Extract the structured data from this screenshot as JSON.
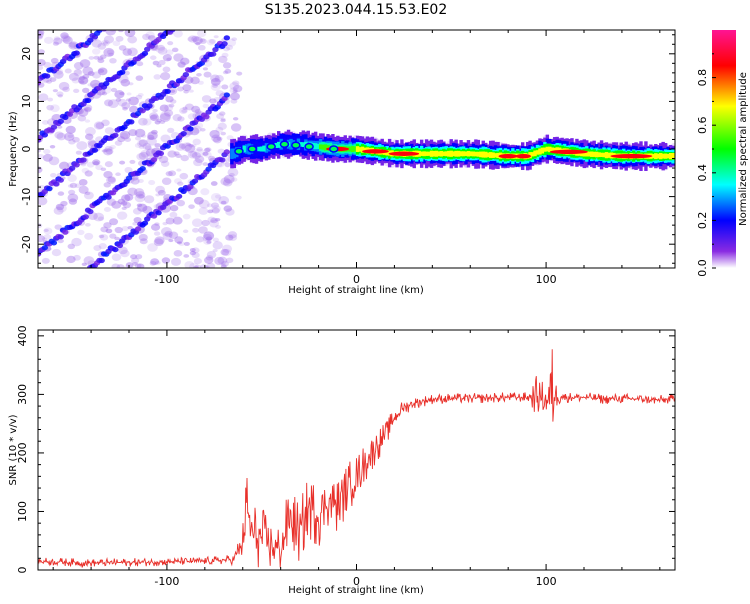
{
  "title": "S135.2023.044.15.53.E02",
  "chart_data": [
    {
      "type": "heatmap",
      "xlabel": "Height of straight line (km)",
      "ylabel": "Frequency (Hz)",
      "xlim": [
        -168,
        168
      ],
      "ylim": [
        -25,
        25
      ],
      "x_ticks": [
        -100,
        0,
        100
      ],
      "x_ticklabels": [
        "-100",
        "0",
        "100"
      ],
      "y_ticks": [
        -20,
        -10,
        0,
        10,
        20
      ],
      "y_ticklabels": [
        "-20",
        "-10",
        "0",
        "10",
        "20"
      ],
      "colorbar": {
        "label": "Normalized spectral amplitude",
        "range": [
          0,
          1
        ],
        "ticks": [
          0.0,
          0.2,
          0.4,
          0.6,
          0.8
        ],
        "ticklabels": [
          "0.0",
          "0.2",
          "0.4",
          "0.6",
          "0.8"
        ],
        "colormap": [
          "#ffffff",
          "#8a2be2",
          "#0000ff",
          "#00ffff",
          "#00ff00",
          "#ffff00",
          "#ff0000",
          "#ff00aa"
        ]
      },
      "ridge": {
        "name": "main ridge",
        "x": [
          -65,
          -60,
          -50,
          -40,
          -30,
          -20,
          -10,
          0,
          20,
          40,
          60,
          80,
          90,
          100,
          120,
          140,
          165
        ],
        "y": [
          -1,
          0,
          0,
          1,
          1,
          0.5,
          0,
          0,
          -1,
          -1,
          -1,
          -1.5,
          -1.5,
          0,
          -1,
          -1.5,
          -1.5
        ]
      },
      "aliased_lines": {
        "x_range": [
          -168,
          -68
        ],
        "slope_hz_per_km": 0.33,
        "offsets_hz": [
          -34,
          -22,
          -10,
          2,
          14,
          26
        ]
      },
      "grid": false
    },
    {
      "type": "line",
      "xlabel": "Height of straight line (km)",
      "ylabel": "SNR (10 * v/v)",
      "xlim": [
        -168,
        168
      ],
      "ylim": [
        0,
        410
      ],
      "x_ticks": [
        -100,
        0,
        100
      ],
      "x_ticklabels": [
        "-100",
        "0",
        "100"
      ],
      "y_ticks": [
        0,
        100,
        200,
        300,
        400
      ],
      "y_ticklabels": [
        "0",
        "100",
        "200",
        "300",
        "400"
      ],
      "color": "#e8302a",
      "series": [
        {
          "x": [
            -168,
            -140,
            -120,
            -100,
            -80,
            -65,
            -60,
            -58,
            -55,
            -50,
            -45,
            -40,
            -35,
            -30,
            -25,
            -20,
            -15,
            -10,
            -5,
            0,
            5,
            10,
            15,
            20,
            25,
            30,
            40,
            50,
            60,
            70,
            80,
            90,
            95,
            100,
            103,
            105,
            110,
            120,
            130,
            140,
            150,
            160,
            168
          ],
          "y": [
            15,
            12,
            13,
            14,
            15,
            18,
            45,
            110,
            60,
            55,
            40,
            35,
            90,
            60,
            110,
            90,
            120,
            110,
            140,
            160,
            185,
            210,
            230,
            260,
            278,
            285,
            292,
            293,
            293,
            294,
            295,
            295,
            298,
            290,
            295,
            300,
            295,
            295,
            292,
            293,
            292,
            290,
            293
          ],
          "noise_amplitude": [
            8,
            8,
            8,
            8,
            8,
            10,
            40,
            80,
            70,
            60,
            55,
            50,
            70,
            60,
            70,
            60,
            55,
            55,
            50,
            45,
            40,
            35,
            25,
            20,
            15,
            12,
            10,
            10,
            10,
            10,
            10,
            10,
            40,
            30,
            120,
            30,
            10,
            10,
            10,
            10,
            10,
            10,
            10
          ]
        }
      ],
      "grid": false
    }
  ]
}
